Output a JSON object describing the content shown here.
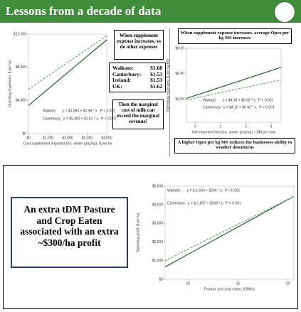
{
  "header": {
    "title": "Lessons from a decade of data"
  },
  "text_boxes": [
    "When supplement expense increases, so do other expenses",
    "Then the marginal cost of milk can exceed the marginal revenue!",
    "When supplement expense increases, average Opex per kg MS increases",
    "A higher Opex per kg MS reduces the businesses ability to weather downturns",
    "An extra tDM Pasture and Crop Eaten associated with an extra ~$300/ha profit"
  ],
  "marginal_costs": [
    [
      "Waikato:",
      "$1.68"
    ],
    [
      "Canterbury:",
      "$1.53"
    ],
    [
      "Ireland:",
      "$1.53"
    ],
    [
      "UK:",
      "$1.62"
    ]
  ],
  "chart_data": [
    {
      "type": "line",
      "x_label": "Cost supplement imported (inc. winter grazing), $ per ha",
      "y_label": "Operating expenses, $ per ha",
      "xlim": [
        0,
        4000
      ],
      "xticks": [
        {
          "value": 0,
          "label": "$0"
        },
        {
          "value": 1000,
          "label": "$1,000"
        },
        {
          "value": 2000,
          "label": "$2,000"
        },
        {
          "value": 3000,
          "label": "$3,000"
        },
        {
          "value": 4000,
          "label": "$4,000"
        }
      ],
      "ylim": [
        0,
        12000
      ],
      "yticks": [
        {
          "value": 0,
          "label": "$0"
        },
        {
          "value": 4000,
          "label": "$4,000"
        },
        {
          "value": 8000,
          "label": "$8,000"
        },
        {
          "value": 12000,
          "label": "$12,000"
        }
      ],
      "annotations": [
        "Waikato:      y = $3,394 + $1.98 * x,  P < 0.001",
        "Canterbury:  y = $5,360 + $1.61 * x,  P < 0.001"
      ],
      "series": [
        {
          "color": "#1f5e34",
          "line_style": "solid",
          "x": [
            0,
            4000
          ],
          "values": [
            3394,
            11314
          ]
        },
        {
          "color": "#6aa874",
          "line_style": "dashed",
          "x": [
            0,
            4000
          ],
          "values": [
            5360,
            11800
          ]
        }
      ]
    },
    {
      "type": "line",
      "x_label": "Net imported feed (inc. winter grazing), t DM per cow",
      "y_label": "Operating expenses, $ per kg MS",
      "xlim": [
        -0.35,
        3.4
      ],
      "xticks": [
        0,
        1,
        2,
        3
      ],
      "ylim": [
        2.2,
        8.0
      ],
      "yticks": [
        {
          "value": 4,
          "label": "$4.00"
        },
        {
          "value": 6,
          "label": "$6.00"
        },
        {
          "value": 8,
          "label": "$8.00"
        }
      ],
      "annotations": [
        "Waikato:      y = $4.30 + $0.65 * x,  P < 0.001",
        "Canterbury:  y = $4.10 + $0.42 * x,  P < 0.001"
      ],
      "series": [
        {
          "color": "#1f5e34",
          "line_style": "solid",
          "x": [
            -0.35,
            3.4
          ],
          "values": [
            4.07,
            6.51
          ]
        },
        {
          "color": "#6aa874",
          "line_style": "dashed",
          "x": [
            -0.35,
            3.4
          ],
          "values": [
            3.95,
            5.53
          ]
        }
      ]
    },
    {
      "type": "line",
      "x_label": "Pasture and crop eaten, tDM/ha",
      "y_label": "Operating profit, $ per ha",
      "xlim": [
        7.7,
        20.6
      ],
      "xticks": [
        10,
        15,
        20
      ],
      "ylim": [
        0,
        5000
      ],
      "yticks": [
        {
          "value": 0,
          "label": "$0"
        },
        {
          "value": 1000,
          "label": "$1,000"
        },
        {
          "value": 2000,
          "label": "$2,000"
        },
        {
          "value": 3000,
          "label": "$3,000"
        },
        {
          "value": 4000,
          "label": "$4,000"
        },
        {
          "value": 5000,
          "label": "$5,000"
        }
      ],
      "annotations": [
        "Waikato:      y = $-1,599 + $294 * x,  P < 0.001",
        "Canterbury:  y = $-1,067 + $268 * x,  P < 0.001"
      ],
      "series": [
        {
          "color": "#1f5e34",
          "line_style": "solid",
          "x": [
            7.7,
            20.6
          ],
          "values": [
            665,
            4457
          ]
        },
        {
          "color": "#6aa874",
          "line_style": "dashed",
          "x": [
            7.7,
            20.6
          ],
          "values": [
            997,
            4454
          ]
        }
      ]
    }
  ]
}
